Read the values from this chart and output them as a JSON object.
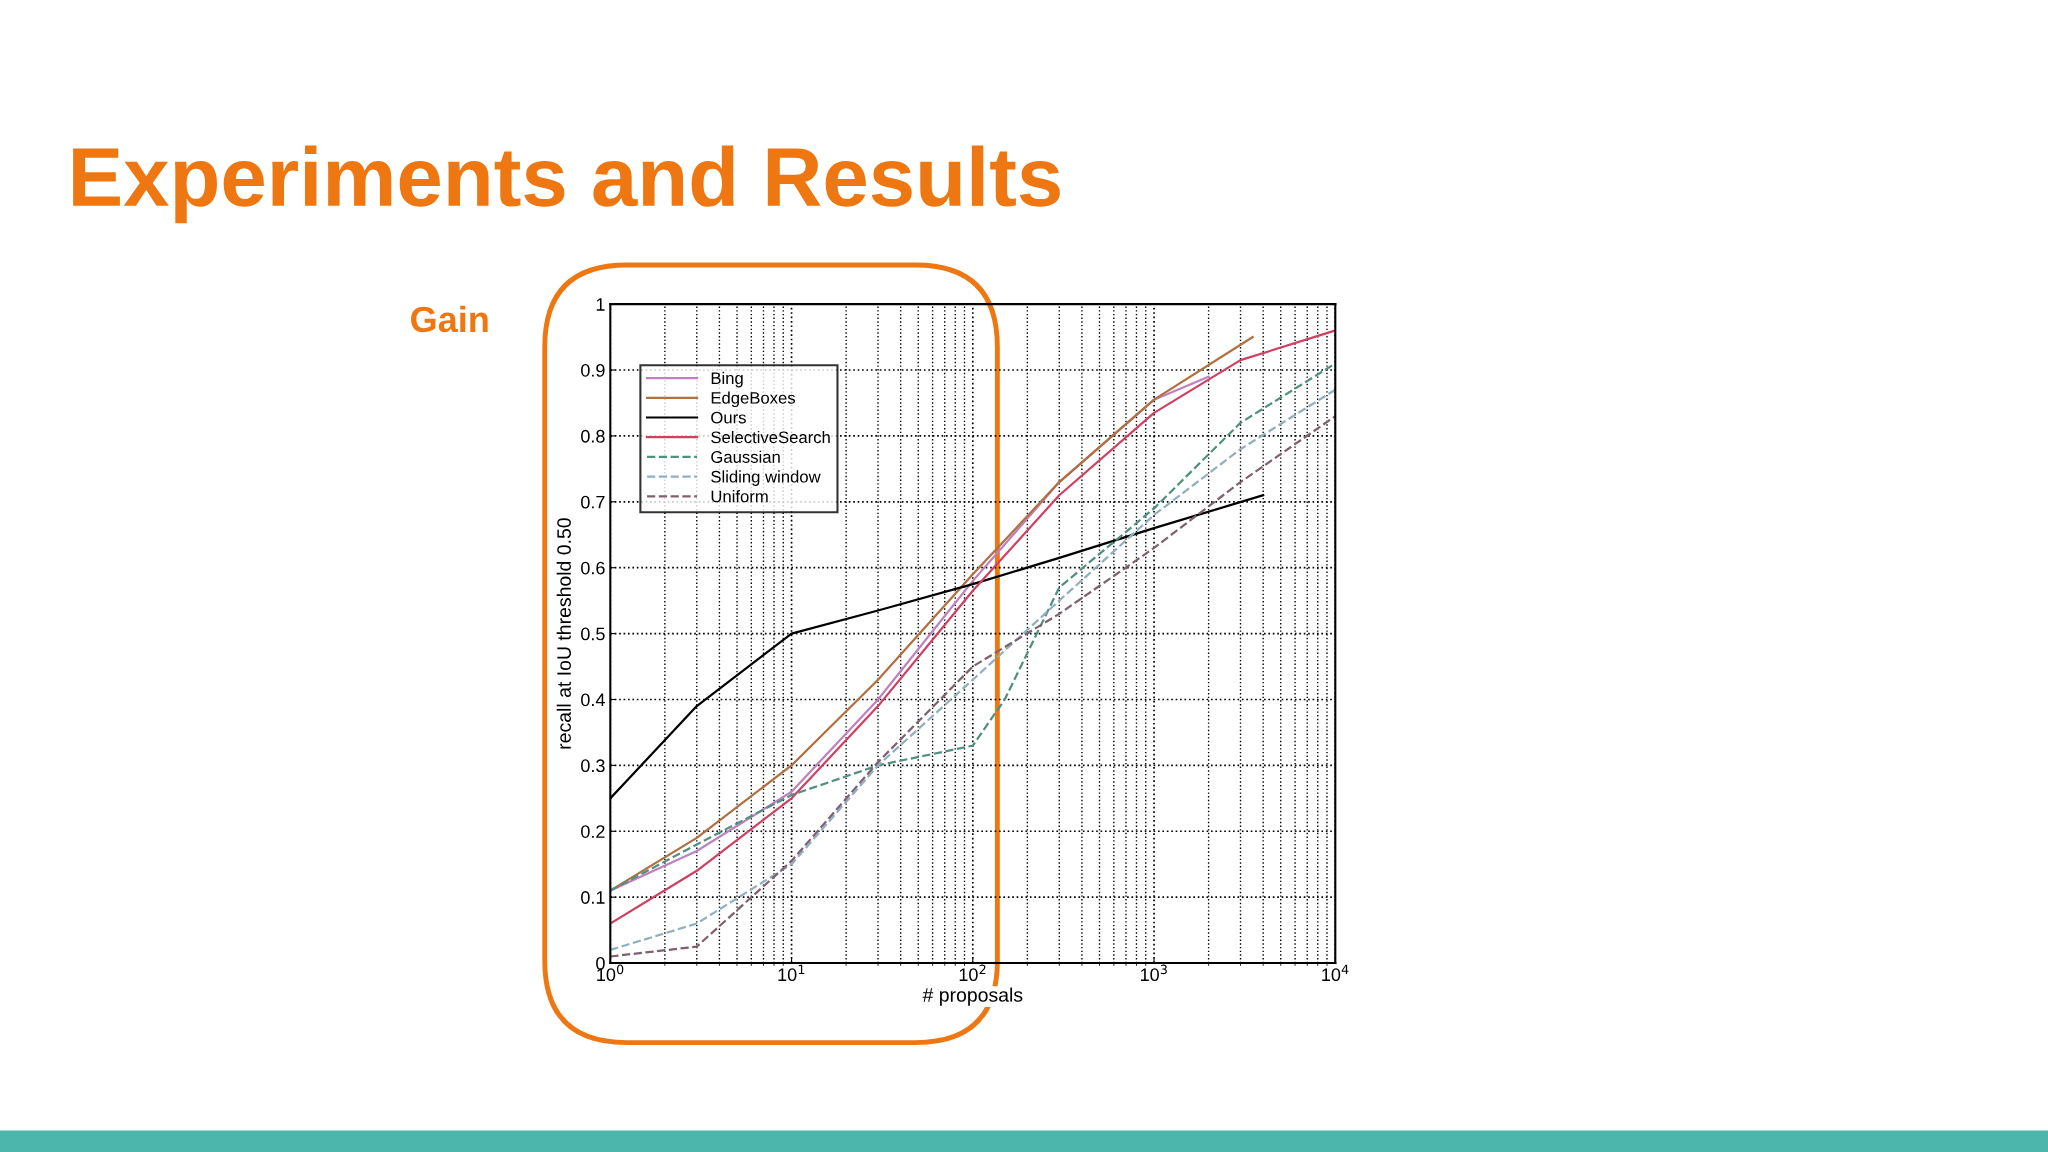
{
  "chart_data": {
    "type": "line",
    "title": "Experiments and Results",
    "xlabel": "# proposals",
    "ylabel": "recall at IoU threshold 0.50",
    "annotations": [
      "Gain"
    ],
    "log": "x",
    "xlim": [
      1,
      10000
    ],
    "xticks": [
      {
        "value": 1,
        "label": "10$^{0}$"
      },
      {
        "value": 10,
        "label": "10$^{1}$"
      },
      {
        "value": 100,
        "label": "10$^{2}$"
      },
      {
        "value": 1000,
        "label": "10$^{3}$"
      },
      {
        "value": 10000,
        "label": "10$^{4}$"
      }
    ],
    "ylim": [
      0,
      1
    ],
    "yticks": [
      0,
      0.1,
      0.2,
      0.3,
      0.4,
      0.5,
      0.6,
      0.7,
      0.8,
      0.9,
      1
    ],
    "grid": true,
    "legend": "top left",
    "series": [
      {
        "name": "Bing",
        "color": "#c080c0",
        "line_style": "solid",
        "x": [
          1,
          3,
          10,
          30,
          100,
          300,
          1000,
          2000
        ],
        "values": [
          0.11,
          0.17,
          0.26,
          0.4,
          0.58,
          0.73,
          0.855,
          0.89
        ]
      },
      {
        "name": "EdgeBoxes",
        "color": "#b07040",
        "line_style": "solid",
        "x": [
          1,
          3,
          10,
          30,
          100,
          300,
          1000,
          3500
        ],
        "values": [
          0.11,
          0.19,
          0.3,
          0.43,
          0.59,
          0.73,
          0.855,
          0.95
        ]
      },
      {
        "name": "Ours",
        "color": "#000000",
        "line_style": "solid",
        "x": [
          1,
          3,
          10,
          30,
          100,
          300,
          1000,
          4000
        ],
        "values": [
          0.25,
          0.39,
          0.5,
          0.535,
          0.575,
          0.615,
          0.66,
          0.71
        ]
      },
      {
        "name": "SelectiveSearch",
        "color": "#d04060",
        "line_style": "solid",
        "x": [
          1,
          3,
          10,
          30,
          100,
          300,
          1000,
          3000,
          10000
        ],
        "values": [
          0.06,
          0.14,
          0.25,
          0.39,
          0.565,
          0.71,
          0.835,
          0.915,
          0.96
        ]
      },
      {
        "name": "Gaussian",
        "color": "#509080",
        "line_style": "dashed",
        "x": [
          1,
          3,
          10,
          30,
          100,
          150,
          300,
          1000,
          3000,
          10000
        ],
        "values": [
          0.11,
          0.18,
          0.255,
          0.3,
          0.33,
          0.4,
          0.57,
          0.69,
          0.82,
          0.91
        ]
      },
      {
        "name": "Sliding window",
        "color": "#90b0c0",
        "line_style": "dashed",
        "x": [
          1,
          3,
          10,
          30,
          100,
          300,
          1000,
          3000,
          10000
        ],
        "values": [
          0.02,
          0.06,
          0.15,
          0.3,
          0.43,
          0.55,
          0.68,
          0.78,
          0.87
        ]
      },
      {
        "name": "Uniform",
        "color": "#806070",
        "line_style": "dashed",
        "x": [
          1,
          3,
          10,
          30,
          100,
          300,
          1000,
          3000,
          10000
        ],
        "values": [
          0.01,
          0.025,
          0.155,
          0.305,
          0.45,
          0.53,
          0.63,
          0.73,
          0.83
        ]
      }
    ]
  }
}
